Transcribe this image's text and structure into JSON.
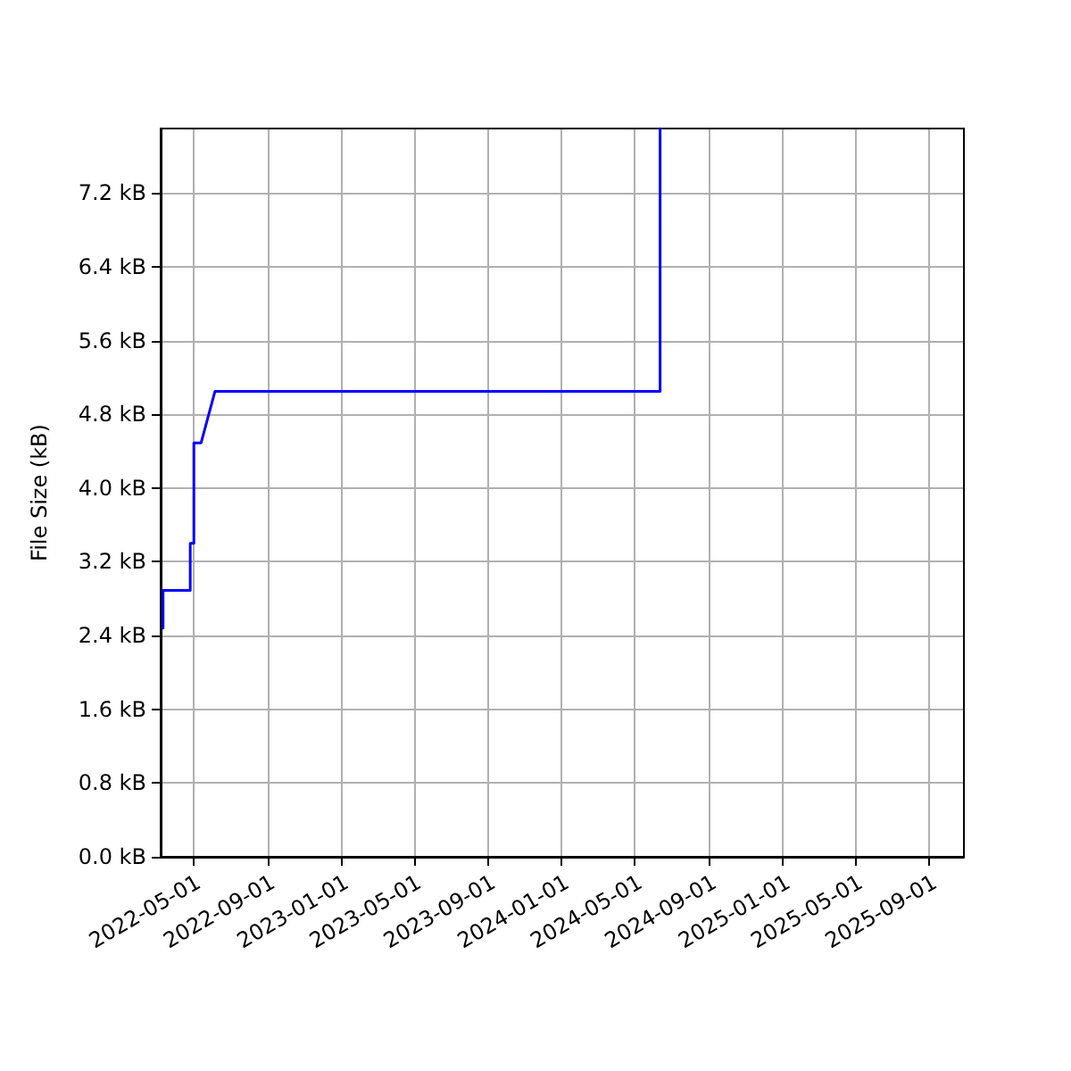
{
  "chart_data": {
    "type": "line",
    "ylabel": "File Size (kB)",
    "x": [
      "2022-03-12",
      "2022-03-12",
      "2022-04-26",
      "2022-04-26",
      "2022-05-02",
      "2022-05-02",
      "2022-05-14",
      "2022-06-06",
      "2024-06-12",
      "2024-06-12"
    ],
    "series": [
      {
        "color": "#0000ff",
        "values": [
          2.48,
          2.89,
          2.89,
          3.4,
          3.4,
          4.49,
          4.49,
          5.05,
          5.05,
          7.9
        ]
      }
    ],
    "xlim": [
      "2022-03-08",
      "2025-10-28"
    ],
    "xticks": [
      "2022-05-01",
      "2022-09-01",
      "2023-01-01",
      "2023-05-01",
      "2023-09-01",
      "2024-01-01",
      "2024-05-01",
      "2024-09-01",
      "2025-01-01",
      "2025-05-01",
      "2025-09-01"
    ],
    "ylim": [
      0,
      7.9
    ],
    "yticks": [
      {
        "value": 0,
        "label": "0.0 kB"
      },
      {
        "value": 0.8,
        "label": "0.8 kB"
      },
      {
        "value": 1.6,
        "label": "1.6 kB"
      },
      {
        "value": 2.4,
        "label": "2.4 kB"
      },
      {
        "value": 3.2,
        "label": "3.2 kB"
      },
      {
        "value": 4.0,
        "label": "4.0 kB"
      },
      {
        "value": 4.8,
        "label": "4.8 kB"
      },
      {
        "value": 5.6,
        "label": "5.6 kB"
      },
      {
        "value": 6.4,
        "label": "6.4 kB"
      },
      {
        "value": 7.2,
        "label": "7.2 kB"
      }
    ],
    "grid": true,
    "marker": "none",
    "line_style": "solid"
  }
}
